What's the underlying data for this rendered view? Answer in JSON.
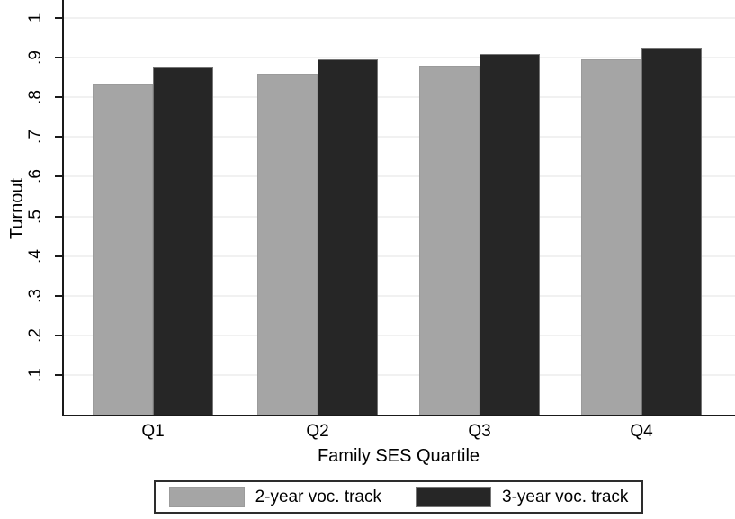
{
  "chart_data": {
    "type": "bar",
    "title": "",
    "categories": [
      "Q1",
      "Q2",
      "Q3",
      "Q4"
    ],
    "series": [
      {
        "name": "2-year voc. track",
        "color": "#a5a5a5",
        "outline": "#9b9b9b",
        "values": [
          0.835,
          0.86,
          0.88,
          0.895
        ]
      },
      {
        "name": "3-year voc. track",
        "color": "#262626",
        "outline": "#757575",
        "values": [
          0.875,
          0.895,
          0.91,
          0.925
        ]
      }
    ],
    "xlabel": "Family SES Quartile",
    "ylabel": "Turnout",
    "ylim": [
      0,
      1.045
    ],
    "yticks": [
      {
        "value": 0.1,
        "label": ".1"
      },
      {
        "value": 0.2,
        "label": ".2"
      },
      {
        "value": 0.3,
        "label": ".3"
      },
      {
        "value": 0.4,
        "label": ".4"
      },
      {
        "value": 0.5,
        "label": ".5"
      },
      {
        "value": 0.6,
        "label": ".6"
      },
      {
        "value": 0.7,
        "label": ".7"
      },
      {
        "value": 0.8,
        "label": ".8"
      },
      {
        "value": 0.9,
        "label": ".9"
      },
      {
        "value": 1.0,
        "label": "1"
      }
    ],
    "ytick_label_rotation_deg": -90,
    "grid": "horizontal",
    "legend_position": "bottom-center",
    "colors": {
      "background": "#ffffff",
      "grid": "#f1f1f1",
      "axis": "#1a1a1a",
      "text": "#000000",
      "legend_border": "#2d2d2d"
    }
  }
}
